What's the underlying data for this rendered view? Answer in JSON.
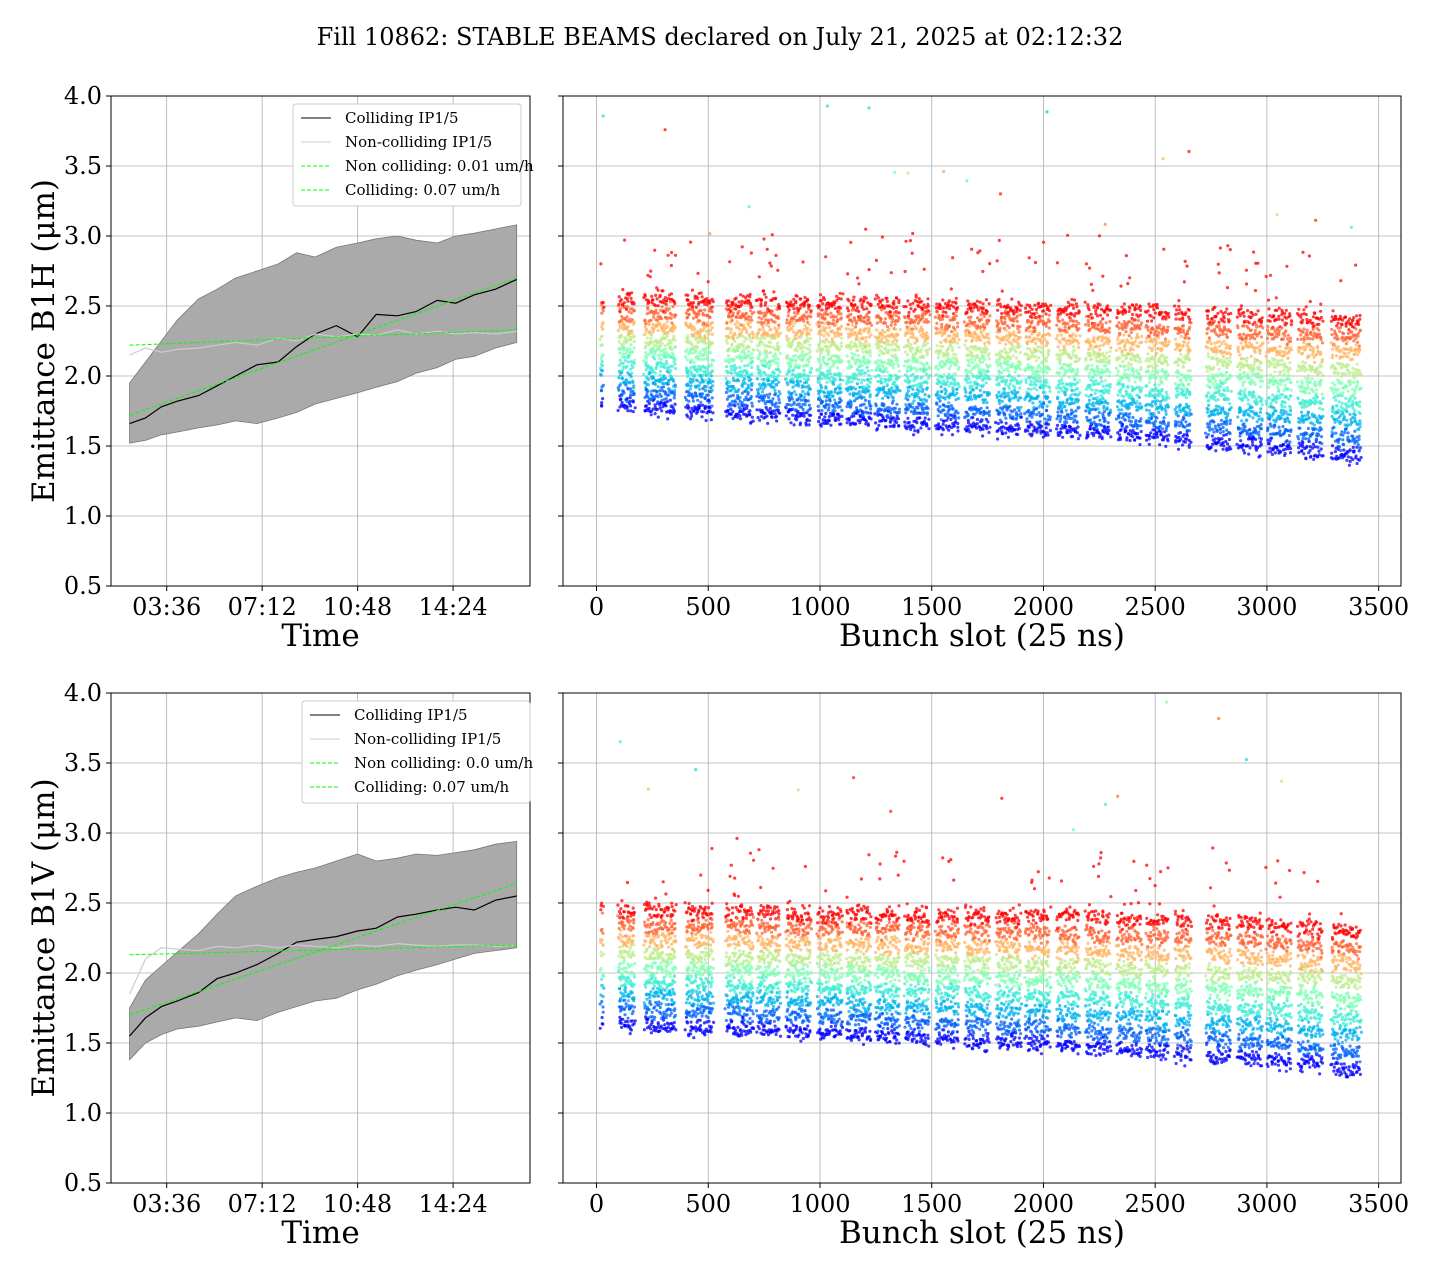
{
  "figure": {
    "suptitle": "Fill 10862: STABLE BEAMS declared on July 21, 2025 at 02:12:32"
  },
  "chart_data": [
    {
      "type": "line",
      "panel": "B1H-time",
      "xlabel": "Time",
      "ylabel": "Emittance B1H (μm)",
      "ylim": [
        0.5,
        4.0
      ],
      "yticks": [
        "0.5",
        "1.0",
        "1.5",
        "2.0",
        "2.5",
        "3.0",
        "3.5",
        "4.0"
      ],
      "xlim_hours": [
        1.5,
        17.3
      ],
      "xticks": [
        {
          "label": "03:36",
          "hour": 3.6
        },
        {
          "label": "07:12",
          "hour": 7.2
        },
        {
          "label": "10:48",
          "hour": 10.8
        },
        {
          "label": "14:24",
          "hour": 14.4
        }
      ],
      "grid": true,
      "legend_location": "upper right",
      "legend": [
        "Colliding IP1/5",
        "Non-colliding IP1/5",
        "Non colliding: 0.01 um/h",
        "Colliding: 0.07 um/h"
      ],
      "series": [
        {
          "name": "Colliding IP1/5",
          "color": "#000000",
          "x": [
            2.2,
            2.8,
            3.4,
            4.0,
            4.8,
            5.5,
            6.2,
            7.0,
            7.8,
            8.5,
            9.2,
            10.0,
            10.8,
            11.5,
            12.3,
            13.0,
            13.8,
            14.5,
            15.2,
            16.0,
            16.8
          ],
          "y": [
            1.66,
            1.7,
            1.78,
            1.82,
            1.86,
            1.93,
            2.0,
            2.08,
            2.1,
            2.21,
            2.3,
            2.36,
            2.28,
            2.44,
            2.43,
            2.46,
            2.54,
            2.52,
            2.58,
            2.62,
            2.69
          ]
        },
        {
          "name": "Non-colliding IP1/5",
          "color": "#cccccc",
          "x": [
            2.2,
            2.8,
            3.4,
            4.0,
            4.8,
            5.5,
            6.2,
            7.0,
            7.8,
            8.5,
            9.2,
            10.0,
            10.8,
            11.5,
            12.3,
            13.0,
            13.8,
            14.5,
            15.2,
            16.0,
            16.8
          ],
          "y": [
            2.15,
            2.2,
            2.17,
            2.19,
            2.2,
            2.22,
            2.24,
            2.22,
            2.27,
            2.25,
            2.3,
            2.28,
            2.3,
            2.29,
            2.33,
            2.3,
            2.32,
            2.3,
            2.31,
            2.3,
            2.32
          ]
        },
        {
          "name": "Non colliding: 0.01 um/h",
          "color": "#00ff00",
          "style": "dashed",
          "x": [
            2.2,
            16.8
          ],
          "y": [
            2.22,
            2.33
          ]
        },
        {
          "name": "Colliding: 0.07 um/h",
          "color": "#00ff00",
          "style": "dashed",
          "x": [
            2.2,
            16.8
          ],
          "y": [
            1.72,
            2.7
          ]
        }
      ],
      "band": {
        "color": "#aaaaaa",
        "x": [
          2.2,
          2.8,
          3.4,
          4.0,
          4.8,
          5.5,
          6.2,
          7.0,
          7.8,
          8.5,
          9.2,
          10.0,
          10.8,
          11.5,
          12.3,
          13.0,
          13.8,
          14.5,
          15.2,
          16.0,
          16.8
        ],
        "lower": [
          1.52,
          1.54,
          1.58,
          1.6,
          1.63,
          1.65,
          1.68,
          1.66,
          1.7,
          1.74,
          1.8,
          1.84,
          1.88,
          1.92,
          1.96,
          2.02,
          2.06,
          2.12,
          2.14,
          2.2,
          2.24
        ],
        "upper": [
          1.95,
          2.1,
          2.25,
          2.4,
          2.55,
          2.62,
          2.7,
          2.75,
          2.8,
          2.88,
          2.85,
          2.92,
          2.95,
          2.98,
          3.0,
          2.97,
          2.95,
          3.0,
          3.02,
          3.05,
          3.08
        ]
      }
    },
    {
      "type": "scatter",
      "panel": "B1H-bunch",
      "xlabel": "Bunch slot (25 ns)",
      "xlim": [
        -150,
        3600
      ],
      "ylim": [
        0.5,
        4.0
      ],
      "xticks": [
        "0",
        "500",
        "1000",
        "1500",
        "2000",
        "2500",
        "3000",
        "3500"
      ],
      "grid": true,
      "colormap": "rainbow",
      "trains": [
        {
          "start": 20,
          "end": 30
        },
        {
          "start": 100,
          "end": 170
        },
        {
          "start": 215,
          "end": 355
        },
        {
          "start": 400,
          "end": 520
        },
        {
          "start": 580,
          "end": 700
        },
        {
          "start": 720,
          "end": 820
        },
        {
          "start": 850,
          "end": 960
        },
        {
          "start": 990,
          "end": 1100
        },
        {
          "start": 1120,
          "end": 1230
        },
        {
          "start": 1250,
          "end": 1355
        },
        {
          "start": 1380,
          "end": 1490
        },
        {
          "start": 1520,
          "end": 1620
        },
        {
          "start": 1650,
          "end": 1760
        },
        {
          "start": 1790,
          "end": 1900
        },
        {
          "start": 1920,
          "end": 2030
        },
        {
          "start": 2060,
          "end": 2160
        },
        {
          "start": 2190,
          "end": 2300
        },
        {
          "start": 2330,
          "end": 2440
        },
        {
          "start": 2460,
          "end": 2560
        },
        {
          "start": 2590,
          "end": 2660
        },
        {
          "start": 2730,
          "end": 2840
        },
        {
          "start": 2870,
          "end": 2980
        },
        {
          "start": 3000,
          "end": 3110
        },
        {
          "start": 3140,
          "end": 3250
        },
        {
          "start": 3290,
          "end": 3420
        }
      ],
      "band_top": {
        "x": [
          0,
          1000,
          2000,
          3000,
          3420
        ],
        "y": [
          2.55,
          2.52,
          2.48,
          2.42,
          2.4
        ]
      },
      "band_bottom": {
        "x": [
          0,
          1000,
          2000,
          3000,
          3420
        ],
        "y": [
          1.8,
          1.7,
          1.62,
          1.5,
          1.42
        ]
      }
    },
    {
      "type": "line",
      "panel": "B1V-time",
      "xlabel": "Time",
      "ylabel": "Emittance B1V (μm)",
      "ylim": [
        0.5,
        4.0
      ],
      "yticks": [
        "0.5",
        "1.0",
        "1.5",
        "2.0",
        "2.5",
        "3.0",
        "3.5",
        "4.0"
      ],
      "xlim_hours": [
        1.5,
        17.3
      ],
      "xticks": [
        {
          "label": "03:36",
          "hour": 3.6
        },
        {
          "label": "07:12",
          "hour": 7.2
        },
        {
          "label": "10:48",
          "hour": 10.8
        },
        {
          "label": "14:24",
          "hour": 14.4
        }
      ],
      "grid": true,
      "legend_location": "upper right",
      "legend": [
        "Colliding IP1/5",
        "Non-colliding IP1/5",
        "Non colliding: 0.0 um/h",
        "Colliding: 0.07 um/h"
      ],
      "series": [
        {
          "name": "Colliding IP1/5",
          "color": "#000000",
          "x": [
            2.2,
            2.8,
            3.4,
            4.0,
            4.8,
            5.5,
            6.2,
            7.0,
            7.8,
            8.5,
            9.2,
            10.0,
            10.8,
            11.5,
            12.3,
            13.0,
            13.8,
            14.5,
            15.2,
            16.0,
            16.8
          ],
          "y": [
            1.55,
            1.68,
            1.76,
            1.8,
            1.86,
            1.96,
            2.0,
            2.06,
            2.14,
            2.22,
            2.24,
            2.26,
            2.3,
            2.32,
            2.4,
            2.42,
            2.45,
            2.47,
            2.45,
            2.52,
            2.55
          ]
        },
        {
          "name": "Non-colliding IP1/5",
          "color": "#cccccc",
          "x": [
            2.2,
            2.8,
            3.4,
            4.0,
            4.8,
            5.5,
            6.2,
            7.0,
            7.8,
            8.5,
            9.2,
            10.0,
            10.8,
            11.5,
            12.3,
            13.0,
            13.8,
            14.5,
            15.2,
            16.0,
            16.8
          ],
          "y": [
            1.85,
            2.1,
            2.18,
            2.17,
            2.16,
            2.19,
            2.18,
            2.2,
            2.18,
            2.2,
            2.19,
            2.18,
            2.2,
            2.19,
            2.21,
            2.2,
            2.19,
            2.2,
            2.2,
            2.19,
            2.2
          ]
        },
        {
          "name": "Non colliding: 0.0 um/h",
          "color": "#00ff00",
          "style": "dashed",
          "x": [
            2.2,
            16.8
          ],
          "y": [
            2.13,
            2.2
          ]
        },
        {
          "name": "Colliding: 0.07 um/h",
          "color": "#00ff00",
          "style": "dashed",
          "x": [
            2.2,
            16.8
          ],
          "y": [
            1.7,
            2.64
          ]
        }
      ],
      "band": {
        "color": "#aaaaaa",
        "x": [
          2.2,
          2.8,
          3.4,
          4.0,
          4.8,
          5.5,
          6.2,
          7.0,
          7.8,
          8.5,
          9.2,
          10.0,
          10.8,
          11.5,
          12.3,
          13.0,
          13.8,
          14.5,
          15.2,
          16.0,
          16.8
        ],
        "lower": [
          1.38,
          1.5,
          1.56,
          1.6,
          1.62,
          1.65,
          1.68,
          1.66,
          1.72,
          1.76,
          1.8,
          1.82,
          1.88,
          1.92,
          1.98,
          2.02,
          2.06,
          2.1,
          2.14,
          2.16,
          2.18
        ],
        "upper": [
          1.75,
          1.95,
          2.05,
          2.15,
          2.28,
          2.42,
          2.55,
          2.62,
          2.68,
          2.72,
          2.75,
          2.8,
          2.85,
          2.8,
          2.82,
          2.85,
          2.84,
          2.86,
          2.88,
          2.92,
          2.94
        ]
      }
    },
    {
      "type": "scatter",
      "panel": "B1V-bunch",
      "xlabel": "Bunch slot (25 ns)",
      "xlim": [
        -150,
        3600
      ],
      "ylim": [
        0.5,
        4.0
      ],
      "xticks": [
        "0",
        "500",
        "1000",
        "1500",
        "2000",
        "2500",
        "3000",
        "3500"
      ],
      "grid": true,
      "colormap": "rainbow",
      "trains": [
        {
          "start": 20,
          "end": 30
        },
        {
          "start": 100,
          "end": 170
        },
        {
          "start": 215,
          "end": 355
        },
        {
          "start": 400,
          "end": 520
        },
        {
          "start": 580,
          "end": 700
        },
        {
          "start": 720,
          "end": 820
        },
        {
          "start": 850,
          "end": 960
        },
        {
          "start": 990,
          "end": 1100
        },
        {
          "start": 1120,
          "end": 1230
        },
        {
          "start": 1250,
          "end": 1355
        },
        {
          "start": 1380,
          "end": 1490
        },
        {
          "start": 1520,
          "end": 1620
        },
        {
          "start": 1650,
          "end": 1760
        },
        {
          "start": 1790,
          "end": 1900
        },
        {
          "start": 1920,
          "end": 2030
        },
        {
          "start": 2060,
          "end": 2160
        },
        {
          "start": 2190,
          "end": 2300
        },
        {
          "start": 2330,
          "end": 2440
        },
        {
          "start": 2460,
          "end": 2560
        },
        {
          "start": 2590,
          "end": 2660
        },
        {
          "start": 2730,
          "end": 2840
        },
        {
          "start": 2870,
          "end": 2980
        },
        {
          "start": 3000,
          "end": 3110
        },
        {
          "start": 3140,
          "end": 3250
        },
        {
          "start": 3290,
          "end": 3420
        }
      ],
      "band_top": {
        "x": [
          0,
          1000,
          2000,
          3000,
          3420
        ],
        "y": [
          2.45,
          2.42,
          2.4,
          2.35,
          2.3
        ]
      },
      "band_bottom": {
        "x": [
          0,
          1000,
          2000,
          3000,
          3420
        ],
        "y": [
          1.65,
          1.58,
          1.5,
          1.38,
          1.3
        ]
      }
    }
  ]
}
